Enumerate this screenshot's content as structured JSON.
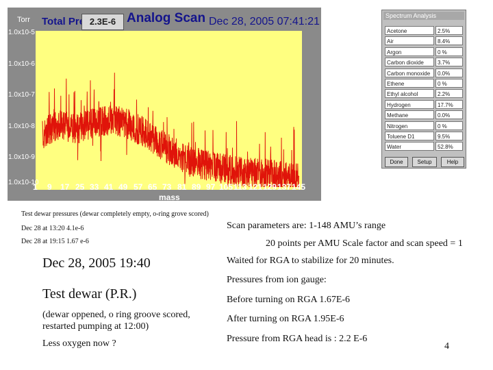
{
  "scan": {
    "unit": "Torr",
    "title_left": "Total Pressure",
    "pill_value": "2.3E-6",
    "title_main": "Analog Scan",
    "datetime": "Dec 28, 2005  07:41:21 P",
    "y_ticks": [
      "1.0x10-5",
      "1.0x10-6",
      "1.0x10-7",
      "1.0x10-8",
      "1.0x10-9",
      "1.0x10-10"
    ],
    "x_ticks": [
      "1",
      "9",
      "17",
      "25",
      "33",
      "41",
      "49",
      "57",
      "65",
      "73",
      "81",
      "89",
      "97",
      "105",
      "113",
      "121",
      "129",
      "137",
      "145"
    ],
    "x_title": "mass",
    "trace_color": "#e0140a",
    "plot_bg": "#ffff80"
  },
  "spectrum": {
    "title": "Spectrum Analysis",
    "rows": [
      {
        "gas": "Acetone",
        "val": "2.5%"
      },
      {
        "gas": "Air",
        "val": "8.4%"
      },
      {
        "gas": "Argon",
        "val": "0 %"
      },
      {
        "gas": "Carbon dioxide",
        "val": "3.7%"
      },
      {
        "gas": "Carbon monoxide",
        "val": "0.0%"
      },
      {
        "gas": "Ethene",
        "val": "0 %"
      },
      {
        "gas": "Ethyl alcohol",
        "val": "2.2%"
      },
      {
        "gas": "Hydrogen",
        "val": "17.7%"
      },
      {
        "gas": "Methane",
        "val": "0.0%"
      },
      {
        "gas": "Nitrogen",
        "val": "0 %"
      },
      {
        "gas": "Toluene D1",
        "val": "9.5%"
      },
      {
        "gas": "Water",
        "val": "52.8%"
      }
    ],
    "buttons": [
      "Done",
      "Setup",
      "Help"
    ]
  },
  "notes": {
    "caption": "Test dewar pressures (dewar completely empty, o-ring grove scored)",
    "p1": "Dec 28 at 13:20   4.1e-6",
    "p2": "Dec 28 at 19:15  1.67 e-6",
    "date": "Dec 28, 2005  19:40",
    "test": "Test dewar  (P.R.)",
    "detail1": "(dewar oppened, o ring groove scored,",
    "detail2": "restarted pumping at 12:00)",
    "oxygen": "Less oxygen now ?"
  },
  "params": {
    "l1": "Scan parameters are: 1-148 AMU’s range",
    "l2": "20 points per AMU Scale factor and scan speed = 1",
    "l3": "Waited for RGA to stabilize for 20 minutes.",
    "l4": "Pressures from ion gauge:",
    "l5": "Before turning on RGA  1.67E-6",
    "l6": "After turning on RGA     1.95E-6",
    "l7": "Pressure from RGA head is  :  2.2 E-6"
  },
  "page_number": "4"
}
